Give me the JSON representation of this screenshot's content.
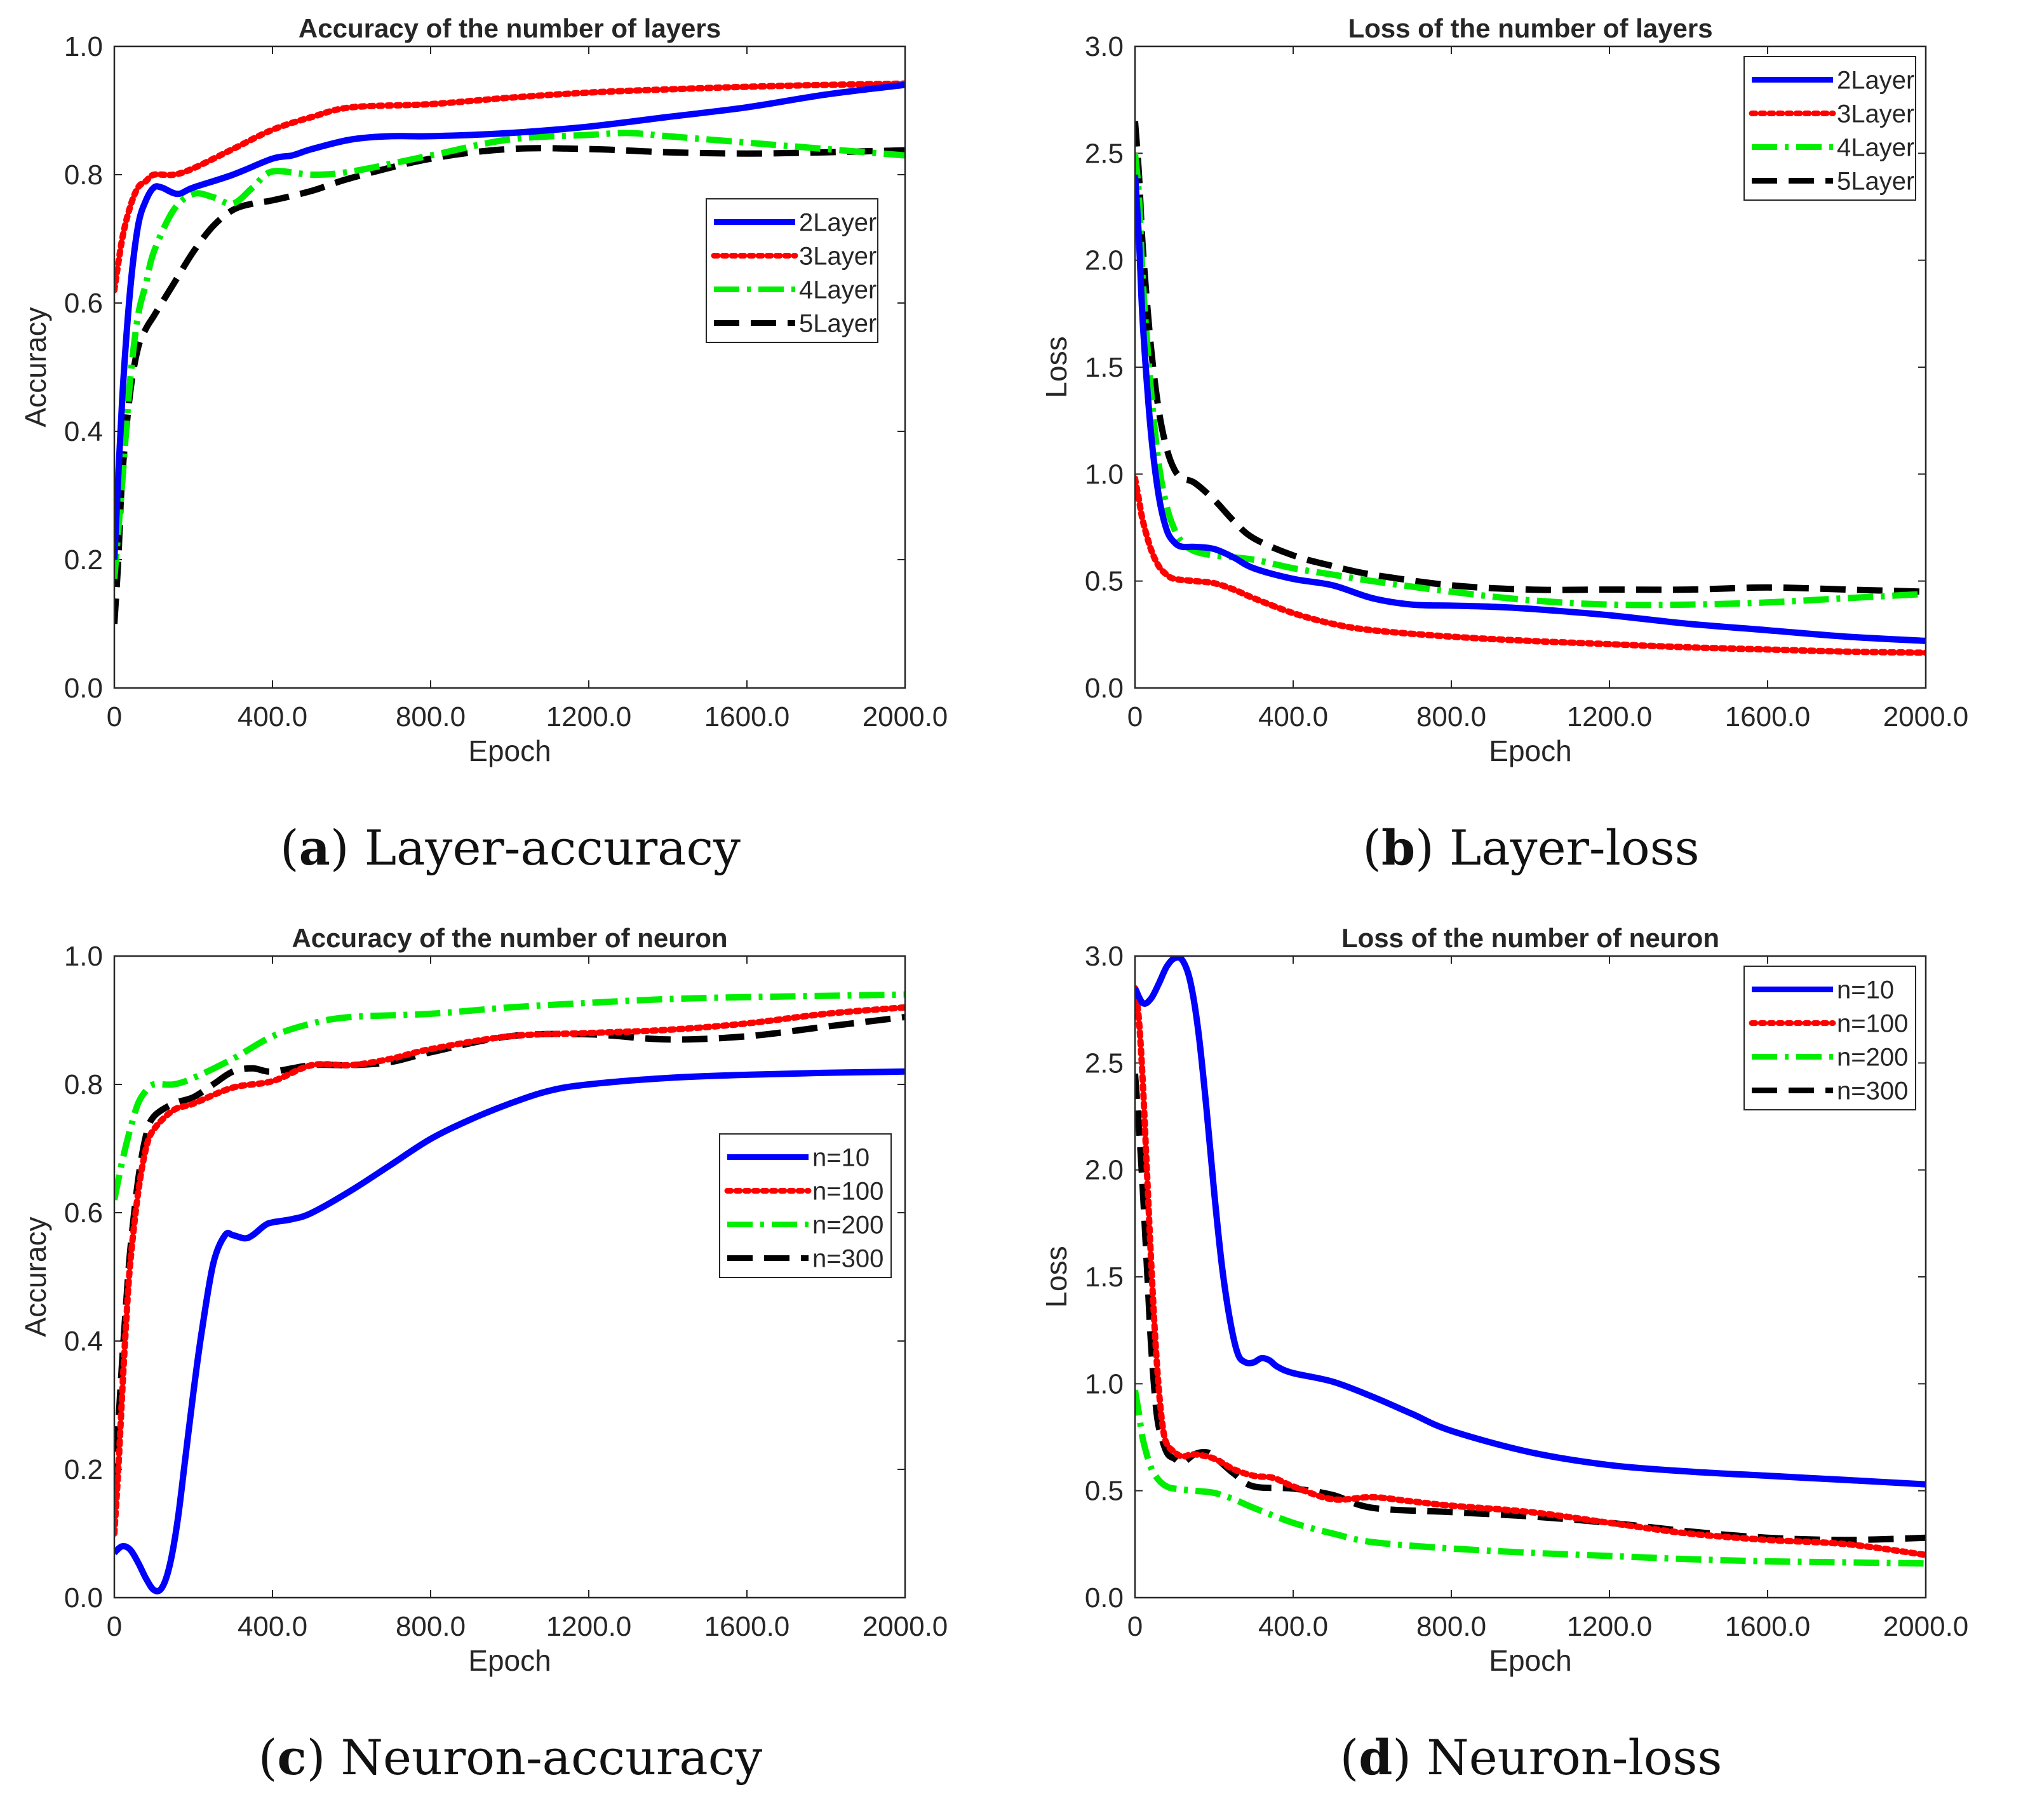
{
  "chart_data": [
    {
      "id": "a",
      "type": "line",
      "title": "Accuracy of the number of layers",
      "xlabel": "Epoch",
      "ylabel": "Accuracy",
      "xlim": [
        0,
        2000
      ],
      "ylim": [
        0,
        1.0
      ],
      "xticks": [
        0,
        400,
        800,
        1200,
        1600,
        2000
      ],
      "xtick_labels": [
        "0",
        "400.0",
        "800.0",
        "1200.0",
        "1600.0",
        "2000.0"
      ],
      "yticks": [
        0,
        0.2,
        0.4,
        0.6,
        0.8,
        1.0
      ],
      "ytick_labels": [
        "0.0",
        "0.2",
        "0.4",
        "0.6",
        "0.8",
        "1.0"
      ],
      "legend_position": "upper-right-center",
      "caption_letter": "a",
      "caption_text": "Layer-accuracy",
      "series": [
        {
          "name": "2Layer",
          "color": "#0000ff",
          "style": "solid",
          "x": [
            0,
            20,
            40,
            60,
            80,
            100,
            120,
            160,
            200,
            300,
            400,
            450,
            500,
            600,
            700,
            800,
            1000,
            1200,
            1400,
            1600,
            1800,
            2000
          ],
          "y": [
            0.2,
            0.45,
            0.62,
            0.72,
            0.76,
            0.78,
            0.78,
            0.77,
            0.78,
            0.8,
            0.825,
            0.83,
            0.84,
            0.855,
            0.86,
            0.86,
            0.865,
            0.875,
            0.89,
            0.905,
            0.925,
            0.94
          ]
        },
        {
          "name": "3Layer",
          "color": "#ff0000",
          "style": "dotted",
          "x": [
            0,
            20,
            40,
            60,
            80,
            100,
            150,
            200,
            300,
            400,
            500,
            600,
            800,
            1000,
            1200,
            1400,
            1600,
            1800,
            2000
          ],
          "y": [
            0.62,
            0.7,
            0.75,
            0.78,
            0.79,
            0.8,
            0.8,
            0.81,
            0.84,
            0.87,
            0.89,
            0.905,
            0.91,
            0.92,
            0.928,
            0.933,
            0.937,
            0.94,
            0.942
          ]
        },
        {
          "name": "4Layer",
          "color": "#00ee00",
          "style": "dashdot",
          "x": [
            0,
            20,
            40,
            60,
            80,
            100,
            150,
            200,
            250,
            300,
            350,
            400,
            500,
            600,
            800,
            1000,
            1200,
            1300,
            1400,
            1600,
            1800,
            2000
          ],
          "y": [
            0.17,
            0.32,
            0.48,
            0.58,
            0.63,
            0.68,
            0.745,
            0.77,
            0.765,
            0.755,
            0.78,
            0.805,
            0.8,
            0.805,
            0.83,
            0.855,
            0.862,
            0.865,
            0.86,
            0.85,
            0.84,
            0.83
          ]
        },
        {
          "name": "5Layer",
          "color": "#000000",
          "style": "dashed",
          "x": [
            0,
            10,
            20,
            40,
            60,
            80,
            100,
            150,
            200,
            250,
            300,
            350,
            400,
            500,
            600,
            800,
            1000,
            1200,
            1400,
            1600,
            1800,
            2000
          ],
          "y": [
            0.1,
            0.2,
            0.33,
            0.46,
            0.53,
            0.56,
            0.58,
            0.63,
            0.68,
            0.72,
            0.745,
            0.755,
            0.76,
            0.775,
            0.795,
            0.825,
            0.84,
            0.84,
            0.835,
            0.833,
            0.835,
            0.838
          ]
        }
      ]
    },
    {
      "id": "b",
      "type": "line",
      "title": "Loss of the number of layers",
      "xlabel": "Epoch",
      "ylabel": "Loss",
      "xlim": [
        0,
        2000
      ],
      "ylim": [
        0,
        3.0
      ],
      "xticks": [
        0,
        400,
        800,
        1200,
        1600,
        2000
      ],
      "xtick_labels": [
        "0",
        "400.0",
        "800.0",
        "1200.0",
        "1600.0",
        "2000.0"
      ],
      "yticks": [
        0,
        0.5,
        1.0,
        1.5,
        2.0,
        2.5,
        3.0
      ],
      "ytick_labels": [
        "0.0",
        "0.5",
        "1.0",
        "1.5",
        "2.0",
        "2.5",
        "3.0"
      ],
      "legend_position": "top-right",
      "caption_letter": "b",
      "caption_text": "Layer-loss",
      "series": [
        {
          "name": "2Layer",
          "color": "#0000ff",
          "style": "solid",
          "x": [
            0,
            10,
            20,
            40,
            60,
            80,
            100,
            120,
            150,
            200,
            250,
            300,
            400,
            500,
            600,
            700,
            800,
            900,
            1000,
            1200,
            1400,
            1600,
            1800,
            2000
          ],
          "y": [
            2.4,
            2.1,
            1.7,
            1.2,
            0.9,
            0.74,
            0.68,
            0.66,
            0.66,
            0.65,
            0.61,
            0.56,
            0.51,
            0.48,
            0.42,
            0.39,
            0.385,
            0.38,
            0.37,
            0.34,
            0.3,
            0.27,
            0.24,
            0.22
          ]
        },
        {
          "name": "3Layer",
          "color": "#ff0000",
          "style": "dotted",
          "x": [
            0,
            10,
            20,
            40,
            60,
            80,
            100,
            150,
            200,
            250,
            300,
            400,
            500,
            600,
            800,
            1000,
            1200,
            1400,
            1600,
            1800,
            2000
          ],
          "y": [
            0.98,
            0.88,
            0.78,
            0.65,
            0.57,
            0.53,
            0.51,
            0.5,
            0.49,
            0.46,
            0.42,
            0.35,
            0.3,
            0.27,
            0.24,
            0.22,
            0.205,
            0.19,
            0.18,
            0.17,
            0.165
          ]
        },
        {
          "name": "4Layer",
          "color": "#00ee00",
          "style": "dashdot",
          "x": [
            0,
            10,
            20,
            40,
            60,
            80,
            100,
            120,
            150,
            200,
            300,
            400,
            500,
            600,
            800,
            1000,
            1200,
            1400,
            1600,
            1800,
            2000
          ],
          "y": [
            2.5,
            2.3,
            1.9,
            1.4,
            1.05,
            0.85,
            0.74,
            0.68,
            0.64,
            0.62,
            0.6,
            0.56,
            0.53,
            0.5,
            0.45,
            0.41,
            0.39,
            0.39,
            0.4,
            0.42,
            0.44
          ]
        },
        {
          "name": "5Layer",
          "color": "#000000",
          "style": "dashed",
          "x": [
            0,
            10,
            20,
            40,
            60,
            80,
            100,
            120,
            150,
            200,
            250,
            300,
            400,
            500,
            600,
            800,
            1000,
            1200,
            1400,
            1600,
            1800,
            2000
          ],
          "y": [
            2.65,
            2.4,
            2.05,
            1.6,
            1.3,
            1.12,
            1.02,
            0.98,
            0.96,
            0.88,
            0.78,
            0.7,
            0.62,
            0.57,
            0.53,
            0.48,
            0.46,
            0.46,
            0.46,
            0.47,
            0.46,
            0.45
          ]
        }
      ]
    },
    {
      "id": "c",
      "type": "line",
      "title": "Accuracy of the number of neuron",
      "xlabel": "Epoch",
      "ylabel": "Accuracy",
      "xlim": [
        0,
        2000
      ],
      "ylim": [
        0,
        1.0
      ],
      "xticks": [
        0,
        400,
        800,
        1200,
        1600,
        2000
      ],
      "xtick_labels": [
        "0",
        "400.0",
        "800.0",
        "1200.0",
        "1600.0",
        "2000.0"
      ],
      "yticks": [
        0,
        0.2,
        0.4,
        0.6,
        0.8,
        1.0
      ],
      "ytick_labels": [
        "0.0",
        "0.2",
        "0.4",
        "0.6",
        "0.8",
        "1.0"
      ],
      "legend_position": "right-center",
      "caption_letter": "c",
      "caption_text": "Neuron-accuracy",
      "series": [
        {
          "name": "n=10",
          "color": "#0000ff",
          "style": "solid",
          "x": [
            0,
            20,
            40,
            60,
            80,
            100,
            120,
            140,
            160,
            180,
            200,
            220,
            250,
            280,
            300,
            330,
            350,
            380,
            400,
            450,
            500,
            600,
            700,
            800,
            900,
            1000,
            1100,
            1200,
            1400,
            1600,
            1800,
            2000
          ],
          "y": [
            0.07,
            0.08,
            0.075,
            0.055,
            0.03,
            0.012,
            0.015,
            0.05,
            0.12,
            0.22,
            0.32,
            0.41,
            0.52,
            0.565,
            0.565,
            0.56,
            0.565,
            0.58,
            0.585,
            0.59,
            0.6,
            0.635,
            0.675,
            0.715,
            0.745,
            0.77,
            0.79,
            0.8,
            0.81,
            0.815,
            0.818,
            0.82
          ]
        },
        {
          "name": "n=100",
          "color": "#ff0000",
          "style": "dotted",
          "x": [
            0,
            10,
            20,
            30,
            40,
            60,
            80,
            100,
            150,
            200,
            300,
            400,
            500,
            600,
            700,
            800,
            1000,
            1200,
            1400,
            1600,
            1800,
            2000
          ],
          "y": [
            0.1,
            0.2,
            0.32,
            0.43,
            0.52,
            0.63,
            0.7,
            0.73,
            0.76,
            0.77,
            0.795,
            0.805,
            0.83,
            0.83,
            0.84,
            0.855,
            0.875,
            0.88,
            0.885,
            0.895,
            0.91,
            0.92
          ]
        },
        {
          "name": "n=200",
          "color": "#00ee00",
          "style": "dashdot",
          "x": [
            0,
            20,
            40,
            60,
            80,
            100,
            150,
            200,
            300,
            400,
            500,
            600,
            800,
            1000,
            1200,
            1400,
            1600,
            1800,
            2000
          ],
          "y": [
            0.62,
            0.68,
            0.73,
            0.77,
            0.79,
            0.8,
            0.8,
            0.81,
            0.84,
            0.875,
            0.895,
            0.905,
            0.91,
            0.92,
            0.927,
            0.933,
            0.936,
            0.938,
            0.94
          ]
        },
        {
          "name": "n=300",
          "color": "#000000",
          "style": "dashed",
          "x": [
            0,
            10,
            20,
            30,
            40,
            60,
            80,
            100,
            150,
            200,
            250,
            300,
            350,
            400,
            500,
            600,
            700,
            800,
            1000,
            1200,
            1400,
            1600,
            1800,
            2000
          ],
          "y": [
            0.17,
            0.27,
            0.37,
            0.46,
            0.54,
            0.65,
            0.72,
            0.75,
            0.77,
            0.78,
            0.8,
            0.82,
            0.825,
            0.82,
            0.83,
            0.83,
            0.835,
            0.85,
            0.875,
            0.878,
            0.87,
            0.875,
            0.89,
            0.905
          ]
        }
      ]
    },
    {
      "id": "d",
      "type": "line",
      "title": "Loss of the number of neuron",
      "xlabel": "Epoch",
      "ylabel": "Loss",
      "xlim": [
        0,
        2000
      ],
      "ylim": [
        0,
        3.0
      ],
      "xticks": [
        0,
        400,
        800,
        1200,
        1600,
        2000
      ],
      "xtick_labels": [
        "0",
        "400.0",
        "800.0",
        "1200.0",
        "1600.0",
        "2000.0"
      ],
      "yticks": [
        0,
        0.5,
        1.0,
        1.5,
        2.0,
        2.5,
        3.0
      ],
      "ytick_labels": [
        "0.0",
        "0.5",
        "1.0",
        "1.5",
        "2.0",
        "2.5",
        "3.0"
      ],
      "legend_position": "top-right",
      "caption_letter": "d",
      "caption_text": "Neuron-loss",
      "series": [
        {
          "name": "n=10",
          "color": "#0000ff",
          "style": "solid",
          "x": [
            0,
            20,
            40,
            60,
            80,
            100,
            120,
            140,
            160,
            180,
            200,
            220,
            240,
            260,
            280,
            300,
            320,
            340,
            360,
            400,
            500,
            600,
            700,
            800,
            1000,
            1200,
            1400,
            1600,
            1800,
            2000
          ],
          "y": [
            2.85,
            2.78,
            2.8,
            2.87,
            2.95,
            2.99,
            2.98,
            2.88,
            2.65,
            2.3,
            1.9,
            1.55,
            1.3,
            1.14,
            1.1,
            1.1,
            1.12,
            1.11,
            1.08,
            1.05,
            1.01,
            0.94,
            0.86,
            0.78,
            0.68,
            0.62,
            0.59,
            0.57,
            0.55,
            0.53
          ]
        },
        {
          "name": "n=100",
          "color": "#ff0000",
          "style": "dotted",
          "x": [
            0,
            10,
            20,
            30,
            40,
            50,
            60,
            70,
            80,
            100,
            120,
            150,
            200,
            250,
            300,
            350,
            400,
            500,
            600,
            700,
            800,
            1000,
            1200,
            1400,
            1600,
            1800,
            2000
          ],
          "y": [
            2.85,
            2.7,
            2.4,
            2.0,
            1.6,
            1.25,
            0.98,
            0.8,
            0.72,
            0.68,
            0.66,
            0.67,
            0.65,
            0.6,
            0.57,
            0.56,
            0.52,
            0.46,
            0.47,
            0.45,
            0.43,
            0.4,
            0.35,
            0.3,
            0.27,
            0.25,
            0.2
          ]
        },
        {
          "name": "n=200",
          "color": "#00ee00",
          "style": "dashdot",
          "x": [
            0,
            10,
            20,
            40,
            60,
            80,
            100,
            150,
            200,
            250,
            300,
            400,
            500,
            600,
            800,
            1000,
            1200,
            1400,
            1600,
            1800,
            2000
          ],
          "y": [
            0.97,
            0.86,
            0.74,
            0.61,
            0.55,
            0.52,
            0.51,
            0.5,
            0.49,
            0.46,
            0.42,
            0.35,
            0.3,
            0.26,
            0.23,
            0.21,
            0.195,
            0.18,
            0.17,
            0.165,
            0.16
          ]
        },
        {
          "name": "n=300",
          "color": "#000000",
          "style": "dashed",
          "x": [
            0,
            10,
            20,
            30,
            40,
            50,
            60,
            80,
            100,
            120,
            150,
            180,
            200,
            250,
            300,
            400,
            500,
            600,
            800,
            1000,
            1200,
            1400,
            1600,
            1800,
            2000
          ],
          "y": [
            2.45,
            2.2,
            1.9,
            1.55,
            1.2,
            0.95,
            0.8,
            0.68,
            0.65,
            0.63,
            0.67,
            0.68,
            0.66,
            0.58,
            0.52,
            0.51,
            0.48,
            0.42,
            0.4,
            0.38,
            0.35,
            0.31,
            0.28,
            0.27,
            0.28
          ]
        }
      ]
    }
  ]
}
